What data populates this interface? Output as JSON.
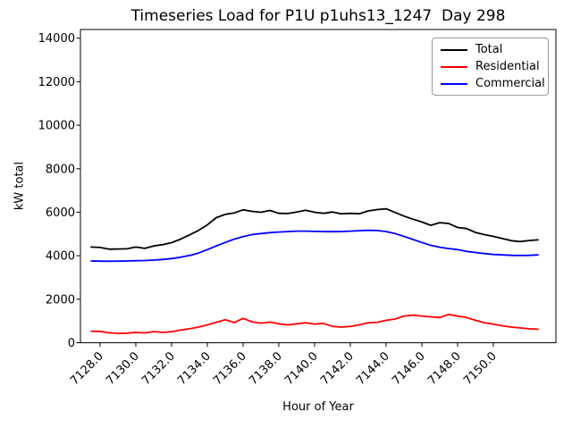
{
  "chart_data": {
    "type": "line",
    "title": "Timeseries Load for P1U p1uhs13_1247  Day 298",
    "xlabel": "Hour of Year",
    "ylabel": "kW total",
    "xlim": [
      7126.9,
      7153.5
    ],
    "ylim": [
      0,
      14400
    ],
    "grid": false,
    "legend_position": "upper right",
    "x_tick_values": [
      7128,
      7130,
      7132,
      7134,
      7136,
      7138,
      7140,
      7142,
      7144,
      7146,
      7148,
      7150
    ],
    "x_tick_labels": [
      "7128.0",
      "7130.0",
      "7132.0",
      "7134.0",
      "7136.0",
      "7138.0",
      "7140.0",
      "7142.0",
      "7144.0",
      "7146.0",
      "7148.0",
      "7150.0"
    ],
    "y_tick_values": [
      0,
      2000,
      4000,
      6000,
      8000,
      10000,
      12000,
      14000
    ],
    "y_tick_labels": [
      "0",
      "2000",
      "4000",
      "6000",
      "8000",
      "10000",
      "12000",
      "14000"
    ],
    "x": [
      7127.5,
      7128,
      7128.5,
      7129,
      7129.5,
      7130,
      7130.5,
      7131,
      7131.5,
      7132,
      7132.5,
      7133,
      7133.5,
      7134,
      7134.5,
      7135,
      7135.5,
      7136,
      7136.5,
      7137,
      7137.5,
      7138,
      7138.5,
      7139,
      7139.5,
      7140,
      7140.5,
      7141,
      7141.5,
      7142,
      7142.5,
      7143,
      7143.5,
      7144,
      7144.5,
      7145,
      7145.5,
      7146,
      7146.5,
      7147,
      7147.5,
      7148,
      7148.5,
      7149,
      7149.5,
      7150,
      7150.5,
      7151,
      7151.5,
      7152,
      7152.5
    ],
    "series": [
      {
        "name": "Total",
        "color": "#000000",
        "values": [
          4400,
          4380,
          4300,
          4310,
          4320,
          4400,
          4340,
          4450,
          4510,
          4600,
          4760,
          4960,
          5160,
          5420,
          5750,
          5900,
          5970,
          6110,
          6040,
          6000,
          6080,
          5950,
          5940,
          6010,
          6090,
          6000,
          5950,
          6010,
          5930,
          5950,
          5930,
          6060,
          6120,
          6160,
          5990,
          5820,
          5680,
          5550,
          5400,
          5520,
          5480,
          5300,
          5250,
          5070,
          4970,
          4890,
          4790,
          4690,
          4650,
          4700,
          4730
        ]
      },
      {
        "name": "Residential",
        "color": "#ff0000",
        "values": [
          530,
          520,
          460,
          430,
          440,
          475,
          450,
          515,
          475,
          505,
          585,
          640,
          720,
          820,
          940,
          1060,
          930,
          1120,
          960,
          900,
          950,
          870,
          820,
          870,
          920,
          860,
          890,
          750,
          720,
          750,
          820,
          920,
          940,
          1030,
          1090,
          1230,
          1270,
          1230,
          1190,
          1160,
          1300,
          1230,
          1160,
          1030,
          920,
          860,
          780,
          720,
          680,
          640,
          620
        ]
      },
      {
        "name": "Commercial",
        "color": "#0000ff",
        "values": [
          3760,
          3750,
          3745,
          3750,
          3760,
          3770,
          3780,
          3800,
          3830,
          3870,
          3930,
          4010,
          4120,
          4280,
          4450,
          4610,
          4760,
          4880,
          4970,
          5020,
          5060,
          5090,
          5110,
          5130,
          5130,
          5120,
          5110,
          5105,
          5110,
          5130,
          5150,
          5170,
          5160,
          5110,
          5020,
          4890,
          4750,
          4610,
          4480,
          4390,
          4330,
          4280,
          4200,
          4150,
          4100,
          4060,
          4040,
          4020,
          4010,
          4020,
          4040
        ]
      }
    ]
  }
}
